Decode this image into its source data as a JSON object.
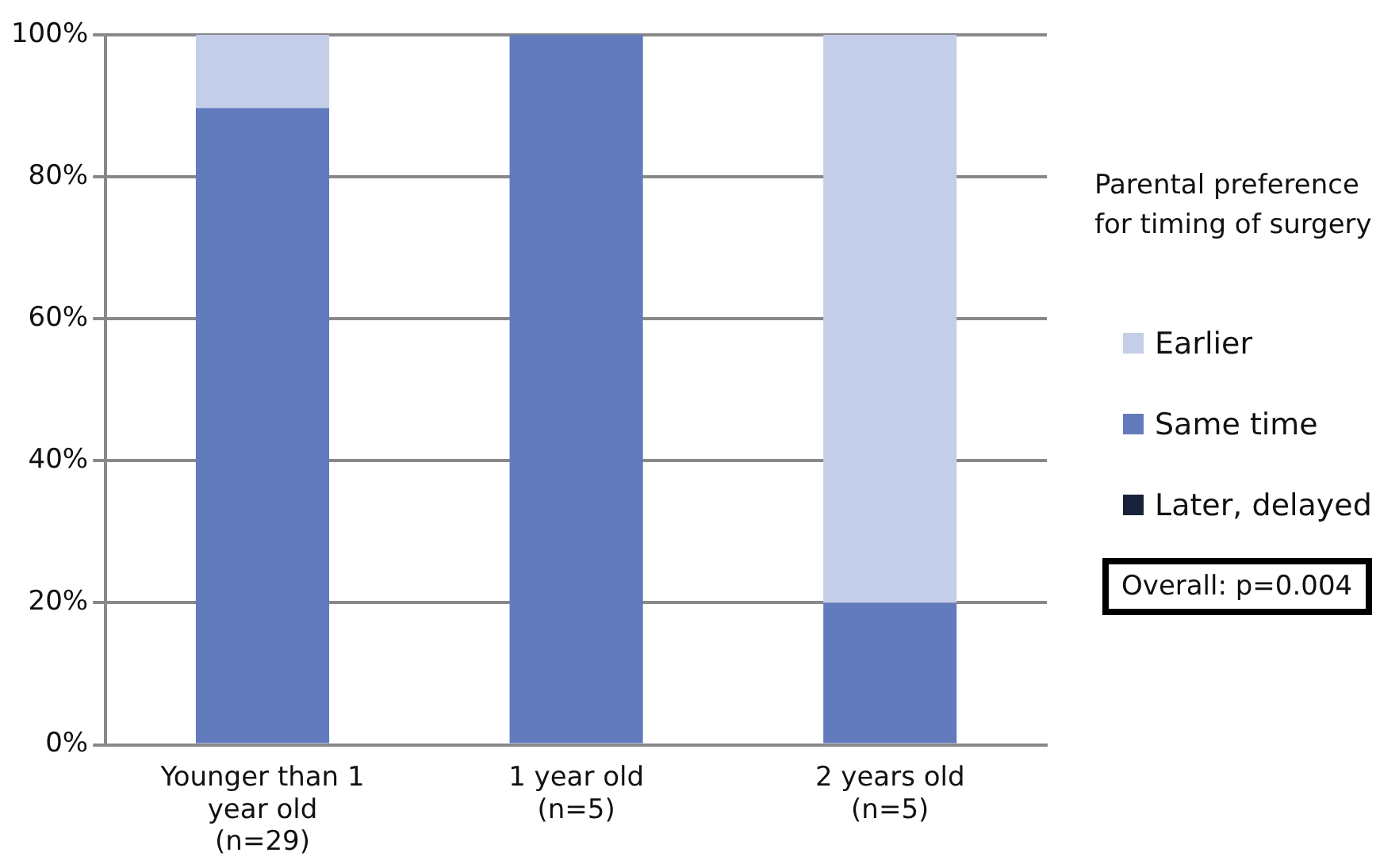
{
  "chart_data": {
    "type": "bar",
    "stacked": true,
    "categories": [
      "Younger than 1 year old (n=29)",
      "1 year old (n=5)",
      "2 years old (n=5)"
    ],
    "series": [
      {
        "name": "Later, delayed",
        "color": "#18223a",
        "values": [
          0,
          0,
          0
        ]
      },
      {
        "name": "Same time",
        "color": "#627bbd",
        "values": [
          89.7,
          100,
          20
        ]
      },
      {
        "name": "Earlier",
        "color": "#c4cee8",
        "values": [
          10.3,
          0,
          80
        ]
      }
    ],
    "ylim": [
      0,
      100
    ],
    "yticks": [
      {
        "value": 0,
        "label": "0%"
      },
      {
        "value": 20,
        "label": "20%"
      },
      {
        "value": 40,
        "label": "40%"
      },
      {
        "value": 60,
        "label": "60%"
      },
      {
        "value": 80,
        "label": "80%"
      },
      {
        "value": 100,
        "label": "100%"
      }
    ],
    "grid": "y",
    "legend": "right",
    "legend_title": "Parental preference for timing of surgery",
    "annotations": [
      "Overall: p=0.004"
    ]
  }
}
